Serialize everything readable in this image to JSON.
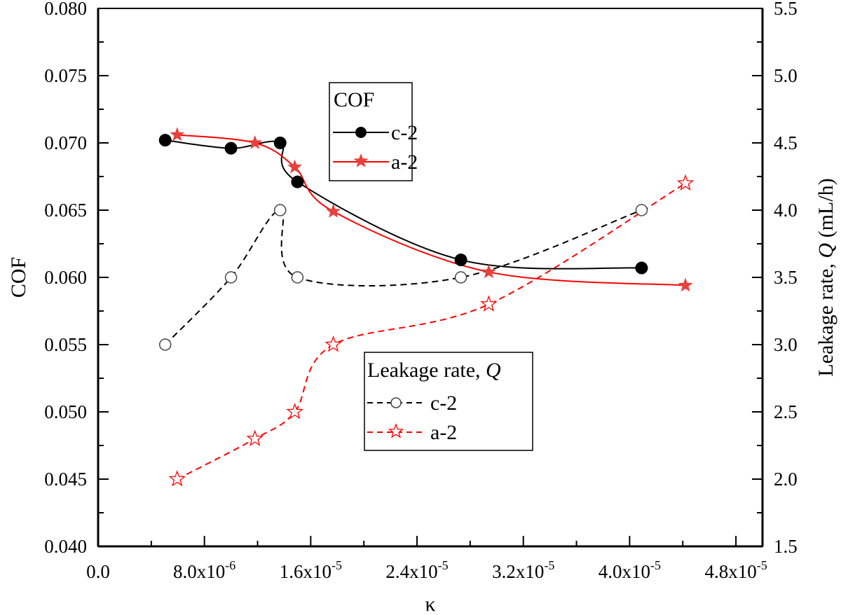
{
  "chart_data": {
    "type": "line",
    "xlabel": "κ",
    "ylabel_left": "COF",
    "ylabel_right": "Leakage rate, Q (mL/h)",
    "xlim": [
      0,
      5e-05
    ],
    "ylim_left": [
      0.04,
      0.08
    ],
    "ylim_right": [
      1.5,
      5.5
    ],
    "x_ticks": [
      {
        "value": 0,
        "label": "0.0"
      },
      {
        "value": 8e-06,
        "label": "8.0x10",
        "exp": "-6"
      },
      {
        "value": 1.6e-05,
        "label": "1.6x10",
        "exp": "-5"
      },
      {
        "value": 2.4e-05,
        "label": "2.4x10",
        "exp": "-5"
      },
      {
        "value": 3.2e-05,
        "label": "3.2x10",
        "exp": "-5"
      },
      {
        "value": 4e-05,
        "label": "4.0x10",
        "exp": "-5"
      },
      {
        "value": 4.8e-05,
        "label": "4.8x10",
        "exp": "-5"
      }
    ],
    "y_left_ticks": [
      "0.040",
      "0.045",
      "0.050",
      "0.055",
      "0.060",
      "0.065",
      "0.070",
      "0.075",
      "0.080"
    ],
    "y_right_ticks": [
      "1.5",
      "2.0",
      "2.5",
      "3.0",
      "3.5",
      "4.0",
      "4.5",
      "5.0",
      "5.5"
    ],
    "grid": false,
    "legends": [
      {
        "title": "COF",
        "placement": "top-center",
        "entries": [
          "c-2",
          "a-2"
        ]
      },
      {
        "title": "Leakage rate, ",
        "title_italic": "Q",
        "placement": "bottom-center",
        "entries": [
          "c-2",
          "a-2"
        ]
      }
    ],
    "series": [
      {
        "name": "c-2",
        "group": "COF",
        "axis": "left",
        "marker": "filled-circle",
        "line": "solid",
        "color": "#000000",
        "x": [
          5.05e-06,
          1e-05,
          1.37e-05,
          1.5e-05,
          2.73e-05,
          4.09e-05
        ],
        "y": [
          0.0702,
          0.0696,
          0.07,
          0.0671,
          0.0613,
          0.0607
        ]
      },
      {
        "name": "a-2",
        "group": "COF",
        "axis": "left",
        "marker": "filled-star",
        "line": "solid",
        "color": "#ff0000",
        "marker_color": "#e8413c",
        "x": [
          5.95e-06,
          1.18e-05,
          1.48e-05,
          1.77e-05,
          2.94e-05,
          4.42e-05
        ],
        "y": [
          0.0706,
          0.07,
          0.0682,
          0.0649,
          0.0604,
          0.0594
        ]
      },
      {
        "name": "c-2",
        "group": "Leakage rate",
        "axis": "right",
        "marker": "open-circle",
        "line": "dashed",
        "color": "#000000",
        "x": [
          5.05e-06,
          1e-05,
          1.37e-05,
          1.5e-05,
          2.73e-05,
          4.09e-05
        ],
        "y": [
          3.0,
          3.5,
          4.0,
          3.5,
          3.5,
          4.0
        ]
      },
      {
        "name": "a-2",
        "group": "Leakage rate",
        "axis": "right",
        "marker": "open-star",
        "line": "dashed",
        "color": "#ff0000",
        "x": [
          5.95e-06,
          1.18e-05,
          1.48e-05,
          1.77e-05,
          2.94e-05,
          4.42e-05
        ],
        "y": [
          2.0,
          2.3,
          2.5,
          3.0,
          3.3,
          4.2
        ]
      }
    ]
  }
}
